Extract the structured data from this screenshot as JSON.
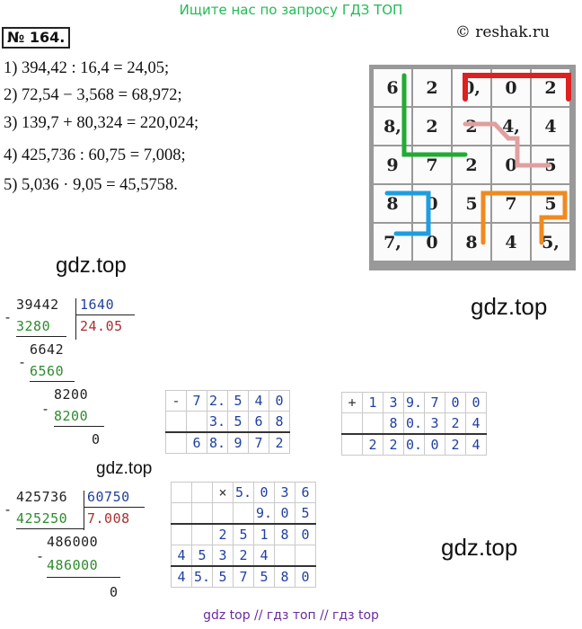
{
  "header": {
    "banner": "Ищите нас по запросу ГДЗ ТОП",
    "copyright": "© reshak.ru"
  },
  "task": {
    "number": "№ 164."
  },
  "equations": [
    "1) 394,42 : 16,4 = 24,05;",
    "2) 72,54 − 3,568 = 68,972;",
    "3) 139,7 + 80,324 = 220,024;",
    "4) 425,736 : 60,75 = 7,008;",
    "5) 5,036 · 9,05 = 45,5758."
  ],
  "grid": {
    "cells": [
      [
        "6",
        "2",
        "0,",
        "0",
        "2"
      ],
      [
        "8,",
        "2",
        "2",
        "4,",
        "4"
      ],
      [
        "9",
        "7",
        "2",
        "0",
        "5"
      ],
      [
        "8",
        "0",
        "5",
        "7",
        "5"
      ],
      [
        "7,",
        "0",
        "8",
        "4",
        "5,"
      ]
    ],
    "path_colors": {
      "red": "#dd2020",
      "green": "#22aa33",
      "pink": "#e0a0a0",
      "blue": "#1e9ee0",
      "orange": "#f08a20"
    }
  },
  "watermarks": [
    "gdz.top",
    "gdz.top",
    "gdz.top",
    "gdz.top"
  ],
  "division1": {
    "dividend": "39442",
    "divisor": "1640",
    "quotient": "24.05",
    "sub1": "3280",
    "rem1": "6642",
    "sub2": "6560",
    "rem2": "8200",
    "sub3": "8200",
    "final": "0",
    "minus": "-"
  },
  "subtraction": {
    "op": "-",
    "row1": [
      "",
      "7",
      "2.",
      "5",
      "4",
      "0"
    ],
    "row2": [
      "",
      "",
      "3.",
      "5",
      "6",
      "8"
    ],
    "row3": [
      "",
      "6",
      "8.",
      "9",
      "7",
      "2"
    ]
  },
  "addition": {
    "op": "+",
    "row1": [
      "1",
      "3",
      "9.",
      "7",
      "0",
      "0"
    ],
    "row2": [
      "",
      "8",
      "0.",
      "3",
      "2",
      "4"
    ],
    "row3": [
      "2",
      "2",
      "0.",
      "0",
      "2",
      "4"
    ]
  },
  "division2": {
    "dividend": "425736",
    "divisor": "60750",
    "quotient": "7.008",
    "sub1": "425250",
    "rem1": "486000",
    "sub2": "486000",
    "final": "0",
    "minus": "-"
  },
  "multiplication": {
    "op": "×",
    "rows": [
      [
        "",
        "",
        "×",
        "5.",
        "0",
        "3",
        "6",
        ""
      ],
      [
        "",
        "",
        "",
        "",
        "9.",
        "0",
        "5",
        ""
      ],
      [
        "",
        "",
        "2",
        "5",
        "1",
        "8",
        "0",
        ""
      ],
      [
        "4",
        "5",
        "3",
        "2",
        "4",
        "",
        "",
        ""
      ],
      [
        "4",
        "5.",
        "5",
        "7",
        "5",
        "8",
        "0",
        ""
      ]
    ]
  },
  "footer": {
    "text": "gdz top  //  гдз топ  //  гдз top"
  }
}
